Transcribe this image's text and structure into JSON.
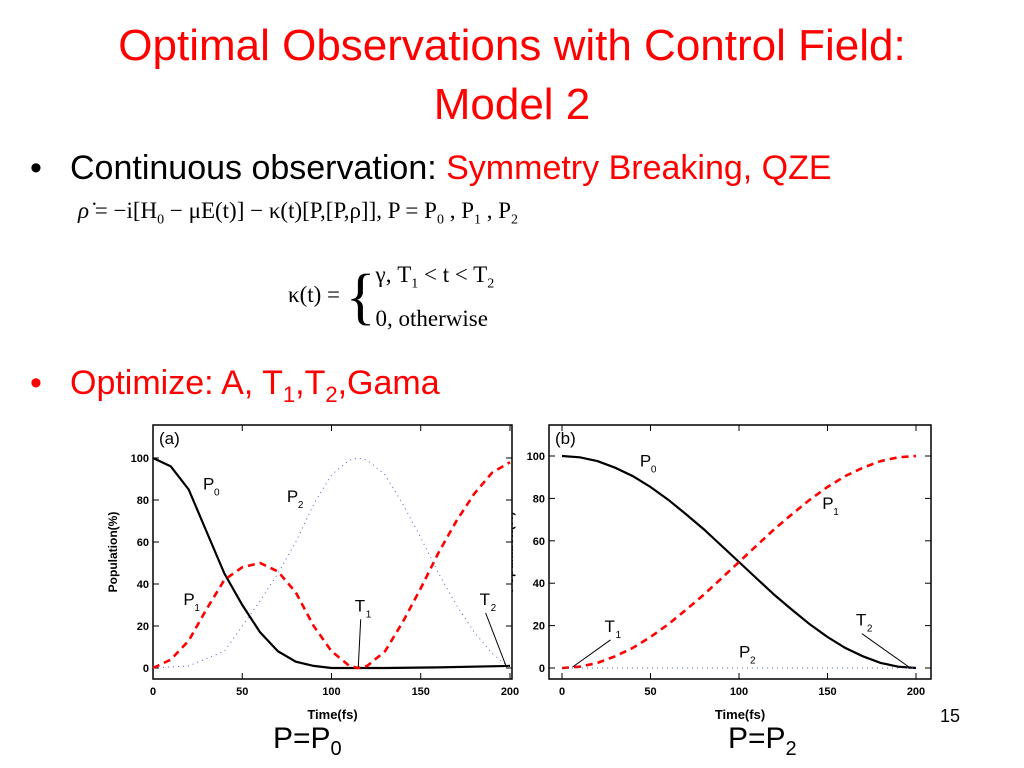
{
  "title": {
    "line1": "Optimal Observations with Control Field:",
    "line2": "Model 2"
  },
  "bullet1": {
    "marker": "•",
    "prefix": "Continuous observation: ",
    "highlight": "Symmetry Breaking, QZE"
  },
  "equation1": {
    "lhs": "ρ̇",
    "part1": " = −i[H",
    "sub0": "0",
    "part2": " − μE(t)] − κ(t)[P,[P,ρ]],    P = P",
    "sub_a": "0",
    "part3": " , P",
    "sub_b": "1",
    "part4": " , P",
    "sub_c": "2"
  },
  "equation2": {
    "lhs": "κ(t) = ",
    "case1_a": "γ,  T",
    "case1_sub1": "1",
    "case1_b": " < t < T",
    "case1_sub2": "2",
    "case2": "0,  otherwise"
  },
  "bullet2": {
    "marker": "•",
    "prefix": "Optimize: A, T",
    "sub1": "1",
    "mid": ",T",
    "sub2": "2",
    "suffix": ",Gama"
  },
  "caption_a": {
    "text": "P=P",
    "sub": "0"
  },
  "caption_b": {
    "text": "P=P",
    "sub": "2"
  },
  "page_number": "15",
  "colors": {
    "title": "#ff0000",
    "p0": "#000000",
    "p1": "#ff0000",
    "p2": "#4a5fd0"
  },
  "chart_data": [
    {
      "panel_label": "(a)",
      "type": "line",
      "xlabel": "Time(fs)",
      "ylabel": "Population(%)",
      "xlim": [
        0,
        200
      ],
      "ylim": [
        0,
        100
      ],
      "xticks": [
        "0",
        "50",
        "100",
        "150",
        "200"
      ],
      "yticks": [
        "0",
        "20",
        "40",
        "60",
        "80",
        "100"
      ],
      "series": [
        {
          "name": "P0",
          "style": "solid",
          "x": [
            0,
            10,
            20,
            30,
            40,
            50,
            60,
            70,
            80,
            90,
            100,
            115,
            130,
            160,
            200
          ],
          "y": [
            100,
            96,
            85,
            65,
            45,
            30,
            17,
            8,
            3,
            1,
            0,
            0,
            0,
            0.3,
            1
          ]
        },
        {
          "name": "P1",
          "style": "dashed",
          "x": [
            0,
            10,
            20,
            30,
            40,
            50,
            60,
            70,
            80,
            90,
            100,
            110,
            115,
            120,
            130,
            140,
            150,
            160,
            170,
            180,
            190,
            200
          ],
          "y": [
            0,
            4,
            13,
            28,
            42,
            48,
            50,
            46,
            36,
            20,
            8,
            1,
            0,
            1,
            8,
            22,
            38,
            55,
            70,
            83,
            93,
            98
          ]
        },
        {
          "name": "P2",
          "style": "dotted",
          "x": [
            0,
            20,
            40,
            50,
            60,
            70,
            80,
            90,
            100,
            110,
            115,
            120,
            130,
            140,
            150,
            160,
            170,
            180,
            190,
            200
          ],
          "y": [
            0,
            1,
            8,
            20,
            32,
            45,
            60,
            78,
            92,
            99,
            100,
            99,
            92,
            78,
            62,
            45,
            30,
            17,
            7,
            0
          ]
        }
      ],
      "annotations": [
        {
          "text": "P",
          "sub": "0",
          "x": 28,
          "y": 85
        },
        {
          "text": "P",
          "sub": "2",
          "x": 75,
          "y": 79
        },
        {
          "text": "P",
          "sub": "1",
          "x": 17,
          "y": 30
        },
        {
          "text": "T",
          "sub": "1",
          "x": 113,
          "y": 27,
          "arrow_to": [
            115,
            0
          ]
        },
        {
          "text": "T",
          "sub": "2",
          "x": 183,
          "y": 30,
          "arrow_to": [
            198,
            0
          ]
        }
      ]
    },
    {
      "panel_label": "(b)",
      "type": "line",
      "xlabel": "Time(fs)",
      "ylabel": "Population(%)",
      "xlim": [
        0,
        200
      ],
      "ylim": [
        0,
        100
      ],
      "xticks": [
        "0",
        "50",
        "100",
        "150",
        "200"
      ],
      "yticks": [
        "0",
        "20",
        "40",
        "60",
        "80",
        "100"
      ],
      "series": [
        {
          "name": "P0",
          "style": "solid",
          "x": [
            0,
            10,
            20,
            30,
            40,
            50,
            60,
            70,
            80,
            90,
            100,
            110,
            120,
            130,
            140,
            150,
            160,
            170,
            180,
            190,
            200
          ],
          "y": [
            100,
            99.4,
            97.6,
            94.5,
            90.5,
            85.4,
            79.4,
            72.6,
            65.5,
            57.8,
            50,
            42.2,
            34.5,
            27.4,
            20.6,
            14.6,
            9.5,
            5.5,
            2.4,
            0.6,
            0
          ]
        },
        {
          "name": "P1",
          "style": "dashed",
          "x": [
            0,
            10,
            20,
            30,
            40,
            50,
            60,
            70,
            80,
            90,
            100,
            110,
            120,
            130,
            140,
            150,
            160,
            170,
            180,
            190,
            200
          ],
          "y": [
            0,
            0.6,
            2.4,
            5.5,
            9.5,
            14.6,
            20.6,
            27.4,
            34.5,
            42.2,
            50,
            57.8,
            65.5,
            72.6,
            79.4,
            85.4,
            90.5,
            94.5,
            97.6,
            99.4,
            100
          ]
        },
        {
          "name": "P2",
          "style": "dotted",
          "x": [
            0,
            200
          ],
          "y": [
            0,
            0
          ]
        }
      ],
      "annotations": [
        {
          "text": "P",
          "sub": "0",
          "x": 44,
          "y": 95
        },
        {
          "text": "P",
          "sub": "1",
          "x": 147,
          "y": 75
        },
        {
          "text": "T",
          "sub": "1",
          "x": 24,
          "y": 17,
          "arrow_to": [
            6,
            0
          ]
        },
        {
          "text": "T",
          "sub": "2",
          "x": 166,
          "y": 20,
          "arrow_to": [
            196,
            0
          ]
        },
        {
          "text": "P",
          "sub": "2",
          "x": 100,
          "y": 5
        }
      ]
    }
  ]
}
